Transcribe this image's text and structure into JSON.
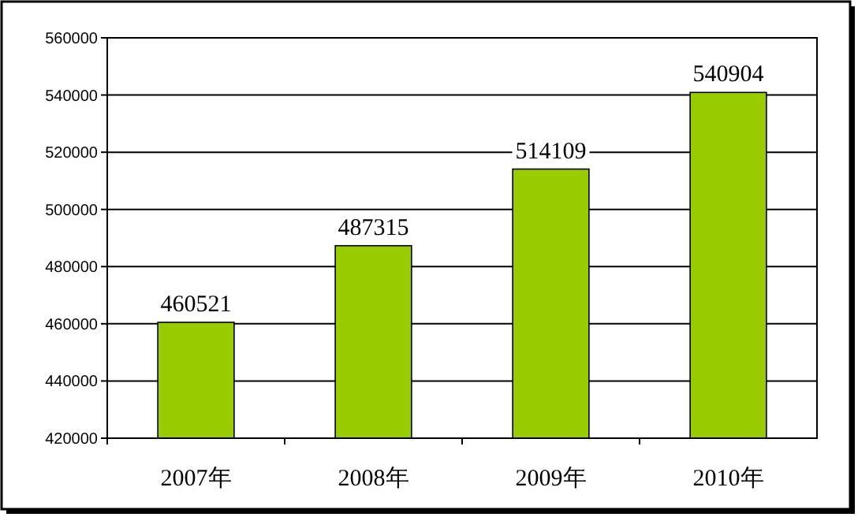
{
  "chart_data": {
    "type": "bar",
    "categories": [
      "2007年",
      "2008年",
      "2009年",
      "2010年"
    ],
    "values": [
      460521,
      487315,
      514109,
      540904
    ],
    "color": "#99cc00",
    "ylim": [
      420000,
      560000
    ],
    "yticks": [
      420000,
      440000,
      460000,
      480000,
      500000,
      520000,
      540000,
      560000
    ],
    "grid": "y",
    "data_labels": true
  }
}
